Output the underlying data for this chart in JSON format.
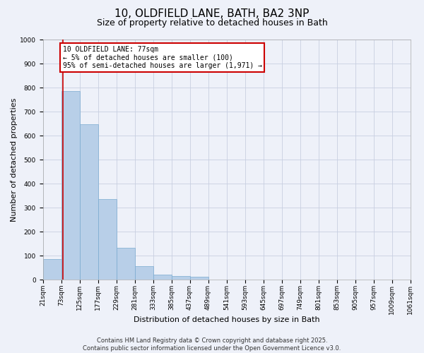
{
  "title": "10, OLDFIELD LANE, BATH, BA2 3NP",
  "subtitle": "Size of property relative to detached houses in Bath",
  "xlabel": "Distribution of detached houses by size in Bath",
  "ylabel": "Number of detached properties",
  "bin_edges": [
    21,
    73,
    125,
    177,
    229,
    281,
    333,
    385,
    437,
    489,
    541,
    593,
    645,
    697,
    749,
    801,
    853,
    905,
    957,
    1009,
    1061
  ],
  "bar_heights": [
    85,
    785,
    648,
    335,
    133,
    57,
    22,
    15,
    12,
    2,
    2,
    0,
    0,
    0,
    0,
    0,
    0,
    0,
    0,
    0
  ],
  "bar_color": "#b8cfe8",
  "bar_edge_color": "#7aaad0",
  "vline_color": "#cc0000",
  "vline_x": 77,
  "annotation_text": "10 OLDFIELD LANE: 77sqm\n← 5% of detached houses are smaller (100)\n95% of semi-detached houses are larger (1,971) →",
  "annotation_box_edgecolor": "#cc0000",
  "annotation_box_facecolor": "#ffffff",
  "ylim": [
    0,
    1000
  ],
  "yticks": [
    0,
    100,
    200,
    300,
    400,
    500,
    600,
    700,
    800,
    900,
    1000
  ],
  "tick_labels": [
    "21sqm",
    "73sqm",
    "125sqm",
    "177sqm",
    "229sqm",
    "281sqm",
    "333sqm",
    "385sqm",
    "437sqm",
    "489sqm",
    "541sqm",
    "593sqm",
    "645sqm",
    "697sqm",
    "749sqm",
    "801sqm",
    "853sqm",
    "905sqm",
    "957sqm",
    "1009sqm",
    "1061sqm"
  ],
  "footer_line1": "Contains HM Land Registry data © Crown copyright and database right 2025.",
  "footer_line2": "Contains public sector information licensed under the Open Government Licence v3.0.",
  "background_color": "#eef1f9",
  "grid_color": "#c8cfe0",
  "title_fontsize": 11,
  "subtitle_fontsize": 9,
  "axis_label_fontsize": 8,
  "tick_fontsize": 6.5,
  "footer_fontsize": 6
}
